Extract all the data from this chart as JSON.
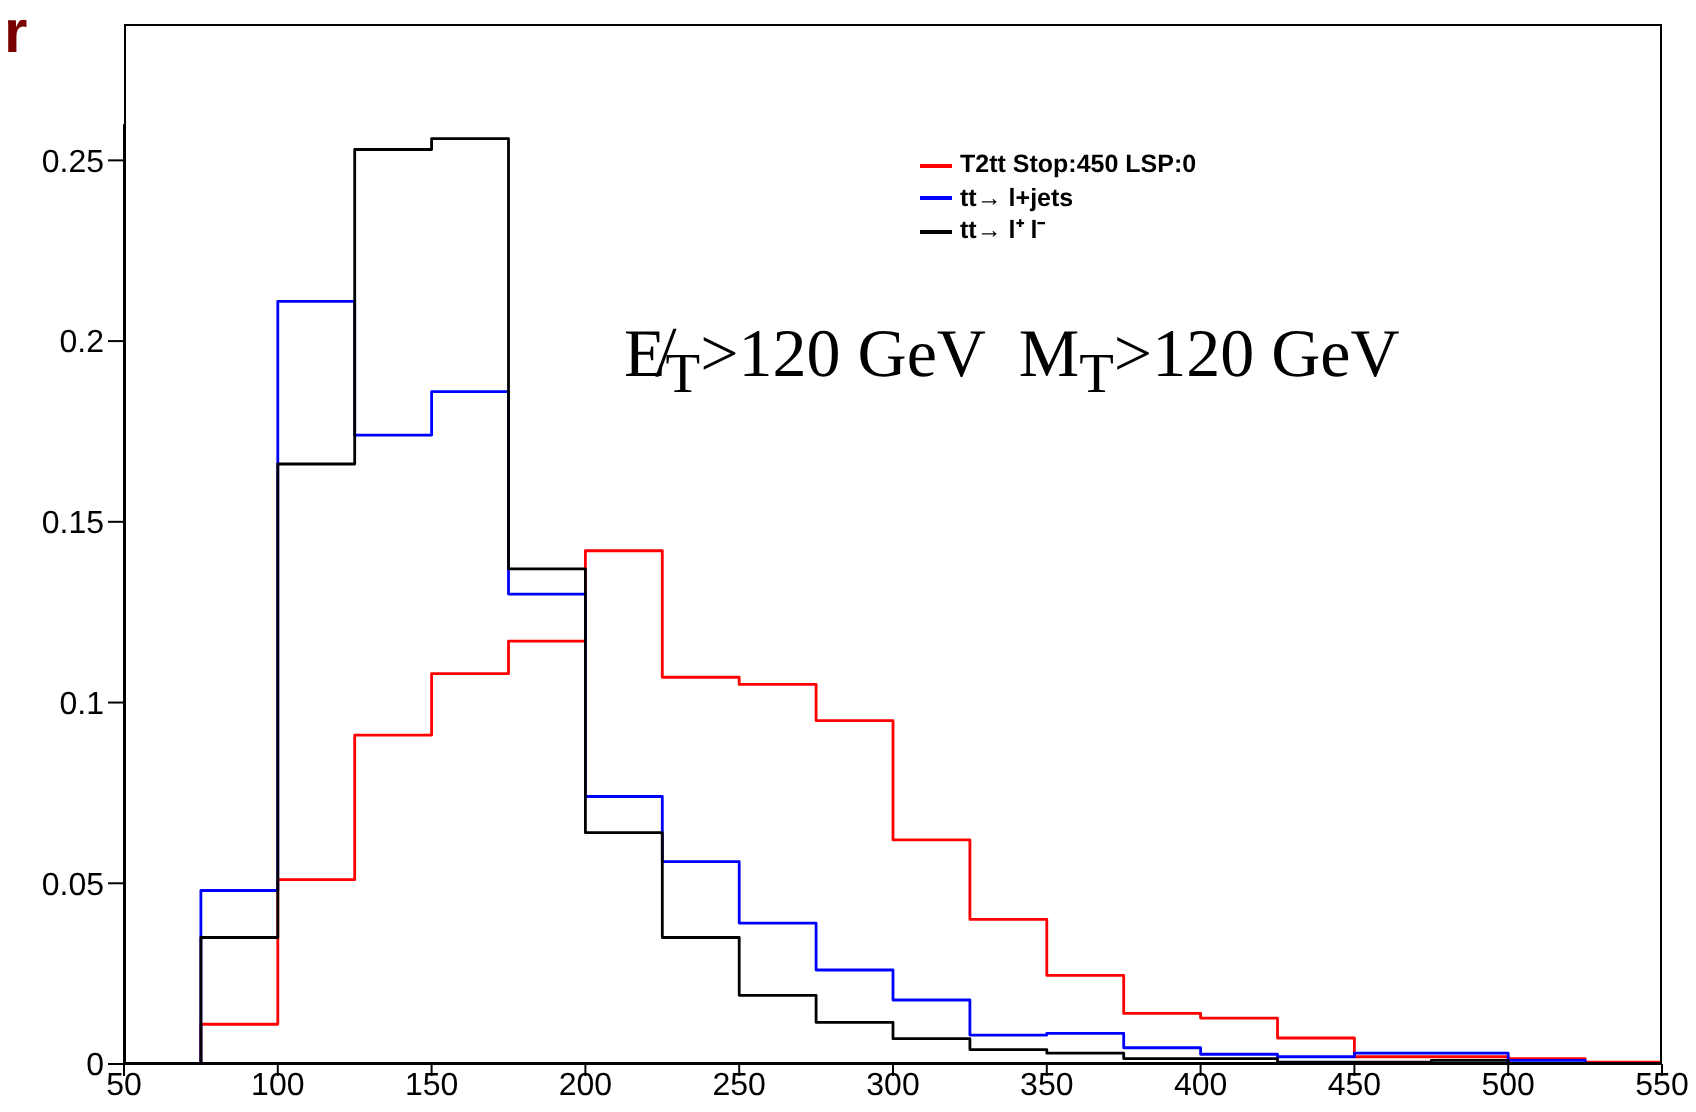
{
  "chart_data": {
    "type": "histogram",
    "bins": [
      50,
      75,
      100,
      125,
      150,
      175,
      200,
      225,
      250,
      275,
      300,
      325,
      350,
      375,
      400,
      425,
      450,
      475,
      500,
      525,
      550
    ],
    "series": [
      {
        "name": "T2tt Stop:450 LSP:0",
        "color": "#ff0000",
        "values": [
          0,
          0.011,
          0.051,
          0.091,
          0.108,
          0.117,
          0.142,
          0.107,
          0.105,
          0.095,
          0.062,
          0.04,
          0.0245,
          0.014,
          0.0127,
          0.0072,
          0.002,
          0.002,
          0.0015,
          0.0005
        ]
      },
      {
        "name": "tt→ l+jets",
        "color": "#0000ff",
        "values": [
          0,
          0.048,
          0.211,
          0.174,
          0.186,
          0.13,
          0.074,
          0.056,
          0.039,
          0.026,
          0.0177,
          0.008,
          0.0085,
          0.0045,
          0.0027,
          0.002,
          0.003,
          0.003,
          0.001,
          0
        ]
      },
      {
        "name": "tt→ l⁺ l⁻",
        "color": "#000000",
        "values": [
          0,
          0.035,
          0.166,
          0.253,
          0.256,
          0.137,
          0.064,
          0.035,
          0.019,
          0.0115,
          0.007,
          0.004,
          0.003,
          0.0015,
          0.0015,
          0.0005,
          0.0005,
          0.001,
          0,
          0
        ]
      }
    ],
    "xlim": [
      50,
      550
    ],
    "xticks": [
      50,
      100,
      150,
      200,
      250,
      300,
      350,
      400,
      450,
      500,
      550
    ],
    "ylim": [
      0,
      0.26
    ],
    "yticks": [
      0,
      0.05,
      0.1,
      0.15,
      0.2,
      0.25
    ],
    "legend": "top right",
    "grid": false,
    "annotations": [
      "r",
      "E̸$_{T}$>120 GeV  M$_{T}$>120 GeV"
    ]
  }
}
